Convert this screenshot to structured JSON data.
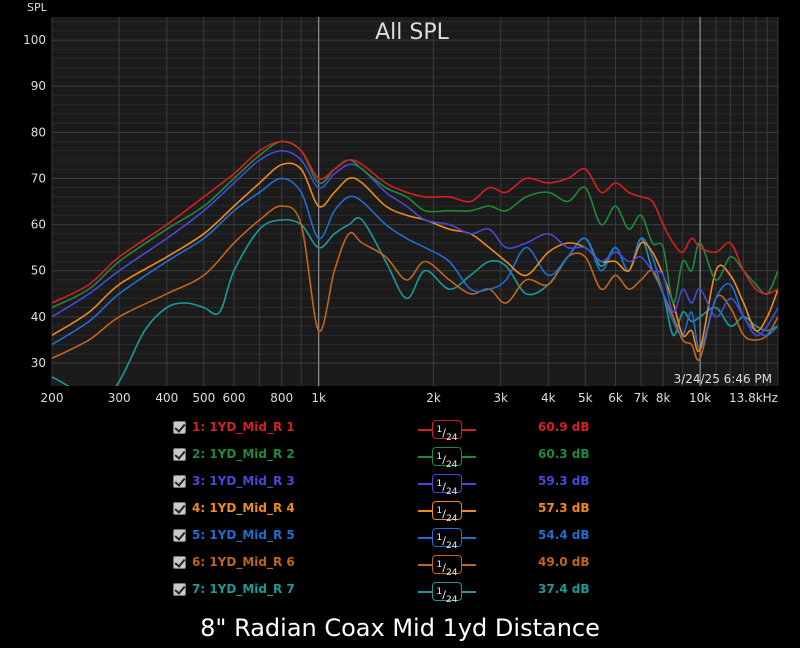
{
  "chart_data": {
    "type": "line",
    "title": "All SPL",
    "ylabel": "SPL",
    "xunit": "Hz",
    "xscale": "log",
    "xlim": [
      200,
      16000
    ],
    "ylim": [
      25,
      105
    ],
    "yticks": [
      30,
      40,
      50,
      60,
      70,
      80,
      90,
      100
    ],
    "xticks": [
      {
        "v": 200,
        "label": "200"
      },
      {
        "v": 300,
        "label": "300"
      },
      {
        "v": 400,
        "label": "400"
      },
      {
        "v": 500,
        "label": "500"
      },
      {
        "v": 600,
        "label": "600"
      },
      {
        "v": 800,
        "label": "800"
      },
      {
        "v": 1000,
        "label": "1k"
      },
      {
        "v": 2000,
        "label": "2k"
      },
      {
        "v": 3000,
        "label": "3k"
      },
      {
        "v": 4000,
        "label": "4k"
      },
      {
        "v": 5000,
        "label": "5k"
      },
      {
        "v": 6000,
        "label": "6k"
      },
      {
        "v": 7000,
        "label": "7k"
      },
      {
        "v": 8000,
        "label": "8k"
      },
      {
        "v": 10000,
        "label": "10k"
      },
      {
        "v": 13800,
        "label": "13.8kHz"
      }
    ],
    "grid": true,
    "timestamp": "3/24/25 6:46 PM",
    "series": [
      {
        "name": "1: 1YD_Mid_R 1",
        "value": "60.9 dB",
        "color": "#d42020",
        "x": [
          200,
          250,
          300,
          400,
          500,
          600,
          700,
          800,
          900,
          1000,
          1100,
          1200,
          1300,
          1500,
          1700,
          1900,
          2200,
          2500,
          2800,
          3100,
          3500,
          4000,
          4500,
          5000,
          5500,
          6000,
          6500,
          7000,
          7500,
          8000,
          8500,
          9000,
          9500,
          10000,
          11000,
          12000,
          13000,
          14000,
          15000,
          16000
        ],
        "y": [
          43,
          47,
          53,
          60,
          66,
          71,
          76,
          78,
          76,
          70,
          72,
          74,
          73,
          69,
          67,
          66,
          66,
          65,
          68,
          67,
          70,
          69,
          70,
          72,
          67,
          69,
          67,
          66,
          65,
          60,
          56,
          54,
          57,
          55,
          54,
          56,
          50,
          46,
          45,
          46
        ]
      },
      {
        "name": "2: 1YD_Mid_R 2",
        "value": "60.3 dB",
        "color": "#1f8a3b",
        "x": [
          200,
          250,
          300,
          400,
          500,
          600,
          700,
          800,
          900,
          1000,
          1100,
          1200,
          1300,
          1500,
          1700,
          1900,
          2200,
          2500,
          2800,
          3100,
          3500,
          4000,
          4500,
          5000,
          5500,
          6000,
          6500,
          7000,
          7500,
          8000,
          8500,
          9000,
          9500,
          10000,
          11000,
          12000,
          13000,
          14000,
          15000,
          16000
        ],
        "y": [
          42,
          46,
          52,
          59,
          64,
          70,
          75,
          78,
          76,
          69,
          72,
          74,
          72,
          68,
          66,
          63,
          63,
          63,
          64,
          63,
          66,
          67,
          65,
          68,
          60,
          64,
          59,
          62,
          56,
          55,
          43,
          52,
          50,
          56,
          48,
          53,
          50,
          47,
          45,
          50
        ]
      },
      {
        "name": "3: 1YD_Mid_R 3",
        "value": "59.3 dB",
        "color": "#4848d8",
        "x": [
          200,
          250,
          300,
          400,
          500,
          600,
          700,
          800,
          900,
          1000,
          1100,
          1200,
          1300,
          1500,
          1700,
          1900,
          2200,
          2500,
          2800,
          3100,
          3500,
          4000,
          4500,
          5000,
          5500,
          6000,
          6500,
          7000,
          7500,
          8000,
          8500,
          9000,
          9500,
          10000,
          11000,
          12000,
          13000,
          14000,
          15000,
          16000
        ],
        "y": [
          40,
          45,
          50,
          57,
          63,
          69,
          74,
          76,
          74,
          68,
          71,
          73,
          72,
          67,
          64,
          61,
          60,
          58,
          59,
          55,
          56,
          58,
          55,
          55,
          52,
          54,
          52,
          53,
          50,
          49,
          41,
          46,
          43,
          46,
          40,
          44,
          40,
          36,
          38,
          42
        ]
      },
      {
        "name": "4: 1YD_Mid_R 4",
        "value": "57.3 dB",
        "color": "#f08a1a",
        "x": [
          200,
          250,
          300,
          400,
          500,
          600,
          700,
          800,
          900,
          1000,
          1100,
          1200,
          1300,
          1500,
          1700,
          1900,
          2200,
          2500,
          2800,
          3100,
          3500,
          4000,
          4500,
          5000,
          5500,
          6000,
          6500,
          7000,
          7500,
          8000,
          8500,
          9000,
          9500,
          10000,
          11000,
          12000,
          13000,
          14000,
          15000,
          16000
        ],
        "y": [
          36,
          41,
          47,
          53,
          58,
          64,
          69,
          73,
          72,
          64,
          67,
          70,
          69,
          64,
          62,
          61,
          59,
          58,
          55,
          52,
          49,
          54,
          56,
          55,
          52,
          52,
          50,
          56,
          54,
          49,
          43,
          36,
          37,
          33,
          50,
          49,
          43,
          37,
          40,
          46
        ]
      },
      {
        "name": "5: 1YD_Mid_R 5",
        "value": "54.4 dB",
        "color": "#1e6fd0",
        "x": [
          200,
          250,
          300,
          400,
          500,
          600,
          700,
          800,
          900,
          1000,
          1100,
          1200,
          1300,
          1500,
          1700,
          1900,
          2200,
          2500,
          2800,
          3100,
          3500,
          4000,
          4500,
          5000,
          5500,
          6000,
          6500,
          7000,
          7500,
          8000,
          8500,
          9000,
          9500,
          10000,
          11000,
          12000,
          13000,
          14000,
          15000,
          16000
        ],
        "y": [
          34,
          39,
          45,
          52,
          57,
          63,
          67,
          70,
          67,
          57,
          63,
          66,
          65,
          60,
          57,
          55,
          52,
          46,
          46,
          48,
          55,
          49,
          53,
          57,
          50,
          55,
          50,
          57,
          53,
          45,
          39,
          36,
          41,
          33,
          44,
          47,
          40,
          37,
          36,
          38
        ]
      },
      {
        "name": "6: 1YD_Mid_R 6",
        "value": "49.0 dB",
        "color": "#c0651e",
        "x": [
          200,
          250,
          300,
          400,
          500,
          600,
          700,
          800,
          900,
          1000,
          1100,
          1200,
          1300,
          1500,
          1700,
          1900,
          2200,
          2500,
          2800,
          3100,
          3500,
          4000,
          4500,
          5000,
          5500,
          6000,
          6500,
          7000,
          7500,
          8000,
          8500,
          9000,
          9500,
          10000,
          11000,
          12000,
          13000,
          14000,
          15000,
          16000
        ],
        "y": [
          31,
          35,
          40,
          45,
          49,
          56,
          61,
          64,
          60,
          37,
          50,
          58,
          56,
          53,
          48,
          52,
          48,
          45,
          46,
          43,
          48,
          47,
          53,
          53,
          46,
          49,
          46,
          48,
          50,
          45,
          40,
          35,
          34,
          31,
          44,
          42,
          36,
          35,
          36,
          40
        ]
      },
      {
        "name": "7: 1YD_Mid_R 7",
        "value": "37.4 dB",
        "color": "#1a9a9a",
        "x": [
          200,
          230,
          260,
          300,
          350,
          400,
          450,
          500,
          550,
          600,
          700,
          800,
          900,
          1000,
          1100,
          1200,
          1300,
          1500,
          1700,
          1900,
          2200,
          2500,
          2800,
          3100,
          3500,
          4000,
          4500,
          5000,
          5500,
          6000,
          6500,
          7000,
          7500,
          8000,
          8500,
          9000,
          9500,
          10000,
          11000,
          12000,
          13000,
          14000,
          15000,
          16000
        ],
        "y": [
          27,
          24,
          20,
          26,
          37,
          42,
          43,
          42,
          41,
          50,
          59,
          61,
          60,
          55,
          58,
          60,
          61,
          52,
          44,
          50,
          46,
          49,
          52,
          51,
          45,
          47,
          53,
          57,
          51,
          55,
          50,
          57,
          50,
          45,
          36,
          41,
          39,
          40,
          42,
          38,
          40,
          38,
          37,
          38
        ]
      }
    ]
  },
  "legend_smoothing": {
    "numerator": "1",
    "denominator": "24"
  },
  "caption": "8\" Radian Coax Mid 1yd Distance"
}
